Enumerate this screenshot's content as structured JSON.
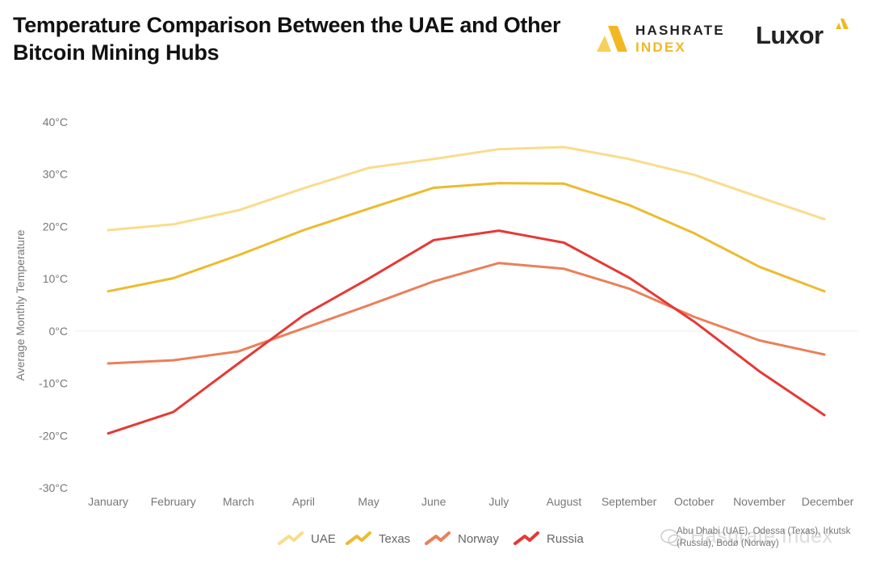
{
  "header": {
    "title": "Temperature Comparison Between the UAE and Other Bitcoin Mining Hubs",
    "brand_1_line_1": "HASHRATE",
    "brand_1_line_2": "INDEX",
    "brand_2": "Luxor",
    "brand_color": "#f2b824"
  },
  "source_note": "Abu Dhabi (UAE), Odessa (Texas), Irkutsk (Russia), Bodø (Norway)",
  "watermark": "Hashrate Index",
  "chart_data": {
    "type": "line",
    "title": "Temperature Comparison Between the UAE and Other Bitcoin Mining Hubs",
    "xlabel": "",
    "ylabel": "Average Monthly Temperature",
    "ylim": [
      -30,
      40
    ],
    "yticks": [
      40,
      30,
      20,
      10,
      0,
      -10,
      -20,
      -30
    ],
    "ytick_labels": [
      "40°C",
      "30°C",
      "20°C",
      "10°C",
      "0°C",
      "-10°C",
      "-20°C",
      "-30°C"
    ],
    "categories": [
      "January",
      "February",
      "March",
      "April",
      "May",
      "June",
      "July",
      "August",
      "September",
      "October",
      "November",
      "December"
    ],
    "grid": "zero line only",
    "legend_position": "bottom",
    "series": [
      {
        "name": "UAE",
        "color": "#f9dc8c",
        "values": [
          19.3,
          20.4,
          23.1,
          27.3,
          31.2,
          32.9,
          34.8,
          35.2,
          32.9,
          29.9,
          25.6,
          21.4
        ]
      },
      {
        "name": "Texas",
        "color": "#ecbb2f",
        "values": [
          7.6,
          10.1,
          14.5,
          19.3,
          23.4,
          27.4,
          28.3,
          28.2,
          24.1,
          18.7,
          12.3,
          7.6
        ]
      },
      {
        "name": "Norway",
        "color": "#ea8058",
        "values": [
          -6.2,
          -5.6,
          -3.9,
          0.5,
          4.9,
          9.5,
          13.0,
          11.9,
          8.1,
          2.7,
          -1.8,
          -4.5
        ]
      },
      {
        "name": "Russia",
        "color": "#e53935",
        "values": [
          -19.6,
          -15.5,
          -6.2,
          3.0,
          10.0,
          17.4,
          19.2,
          16.9,
          10.2,
          1.8,
          -7.7,
          -16.1
        ]
      }
    ]
  }
}
